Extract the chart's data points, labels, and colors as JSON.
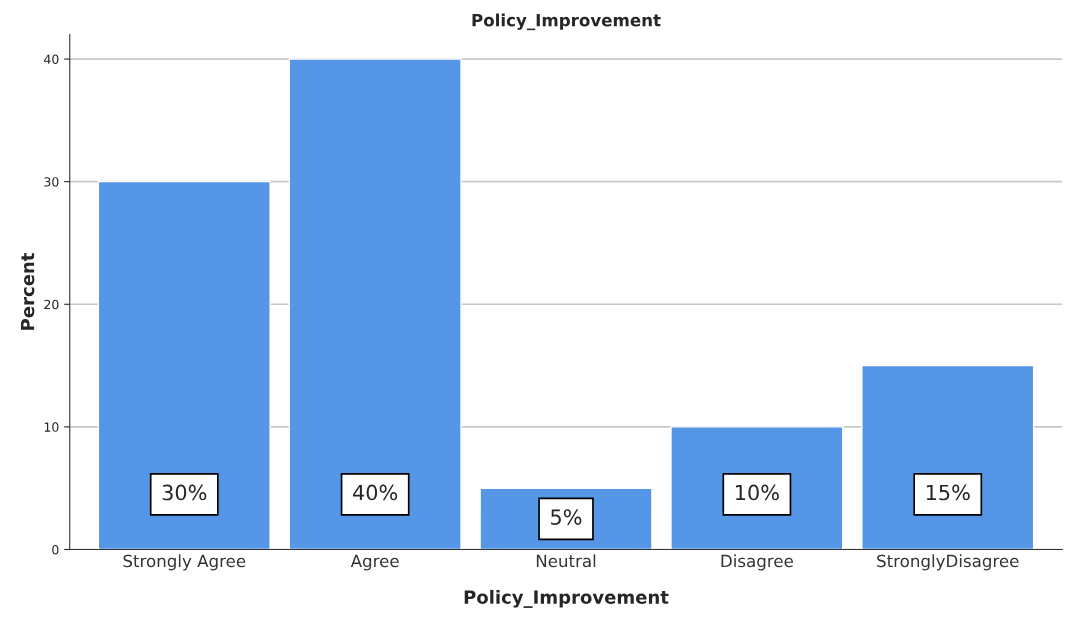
{
  "chart_data": {
    "type": "bar",
    "title": "Policy_Improvement",
    "xlabel": "Policy_Improvement",
    "ylabel": "Percent",
    "categories": [
      "Strongly Agree",
      "Agree",
      "Neutral",
      "Disagree",
      "StronglyDisagree"
    ],
    "values": [
      30,
      40,
      5,
      10,
      15
    ],
    "value_labels": [
      "30%",
      "40%",
      "5%",
      "10%",
      "15%"
    ],
    "color": "#5596e6",
    "ylim": [
      0,
      42
    ],
    "yticks": [
      0,
      10,
      20,
      30,
      40
    ],
    "grid": "y",
    "legend": false
  }
}
